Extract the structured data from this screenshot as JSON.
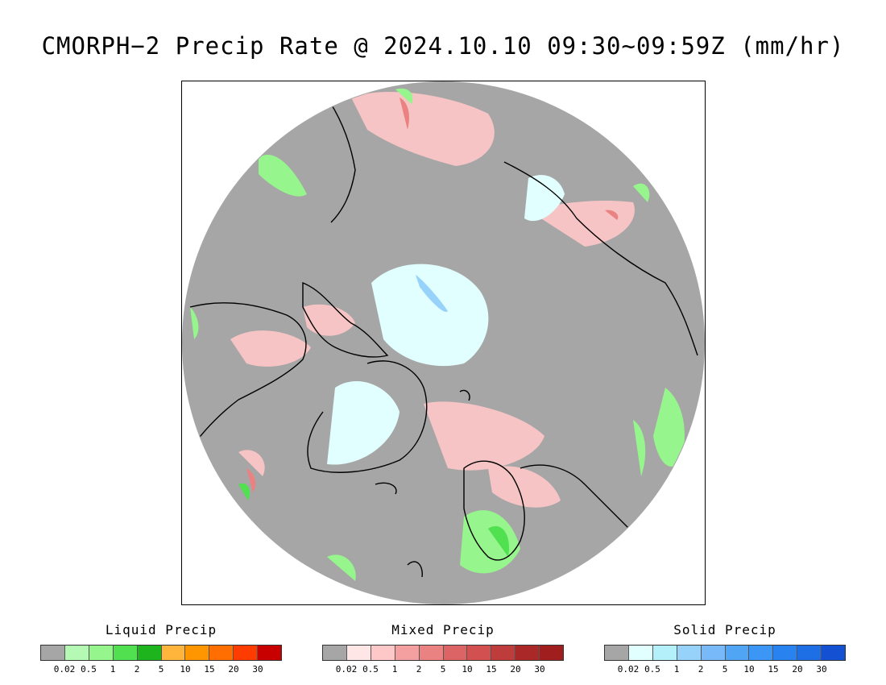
{
  "title": "CMORPH−2 Precip Rate @ 2024.10.10 09:30~09:59Z (mm/hr)",
  "map": {
    "projection": "north-polar-stereographic",
    "disk_color": "#a6a6a6",
    "coastline_color": "#000000"
  },
  "legends": [
    {
      "id": "liquid",
      "title": "Liquid Precip",
      "colors": [
        "#a6a6a6",
        "#b4fab4",
        "#96f58c",
        "#50e050",
        "#1eb41e",
        "#ffb43c",
        "#ff9600",
        "#ff6e00",
        "#ff3c00",
        "#c80000"
      ],
      "ticks": [
        "0.02",
        "0.5",
        "1",
        "2",
        "5",
        "10",
        "15",
        "20",
        "30"
      ]
    },
    {
      "id": "mixed",
      "title": "Mixed Precip",
      "colors": [
        "#a6a6a6",
        "#ffe6e6",
        "#ffc8c8",
        "#f5a0a0",
        "#eb8282",
        "#dc6464",
        "#d25050",
        "#be3c3c",
        "#aa2828",
        "#a01e1e"
      ],
      "ticks": [
        "0.02",
        "0.5",
        "1",
        "2",
        "5",
        "10",
        "15",
        "20",
        "30"
      ]
    },
    {
      "id": "solid",
      "title": "Solid Precip",
      "colors": [
        "#a6a6a6",
        "#e1ffff",
        "#b4f0fa",
        "#96d2fa",
        "#78b9fa",
        "#50a5f5",
        "#3c96f5",
        "#2882f0",
        "#1e6ee6",
        "#1450d2"
      ],
      "ticks": [
        "0.02",
        "0.5",
        "1",
        "2",
        "5",
        "10",
        "15",
        "20",
        "30"
      ]
    }
  ]
}
